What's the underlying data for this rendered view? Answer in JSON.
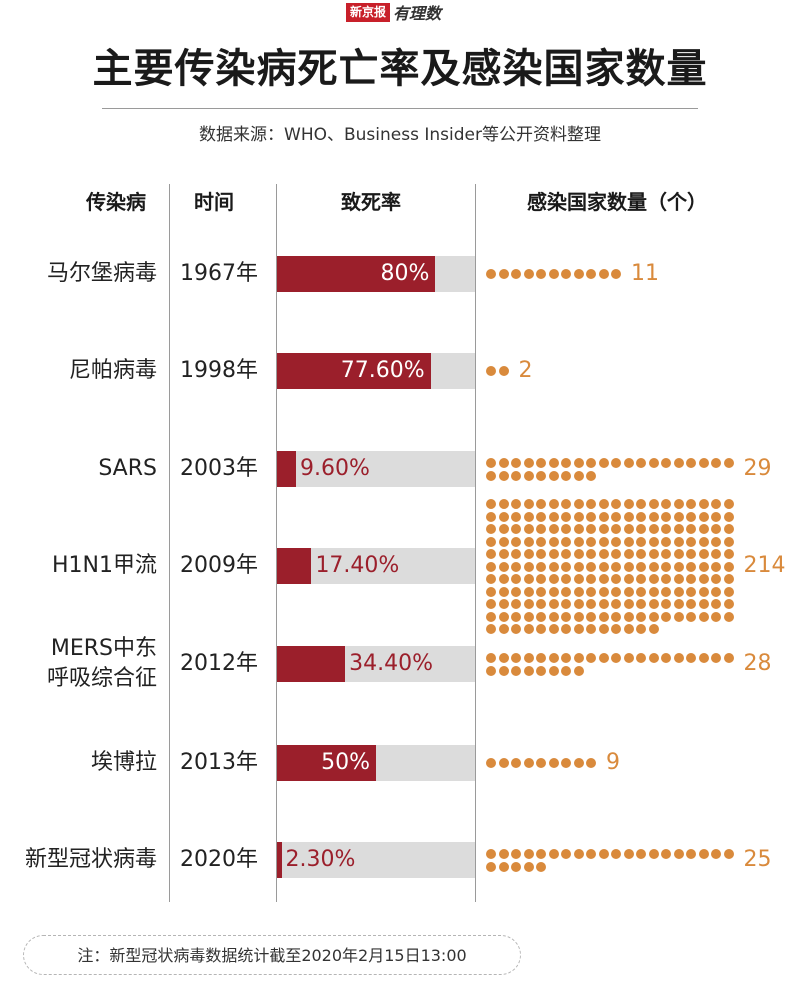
{
  "brand": {
    "box_text": "新京报",
    "script_text": "有理数"
  },
  "title": "主要传染病死亡率及感染国家数量",
  "source": "数据来源：WHO、Business Insider等公开资料整理",
  "headers": {
    "disease": "传染病",
    "time": "时间",
    "fatality": "致死率",
    "countries": "感染国家数量（个）"
  },
  "note": "注：新型冠状病毒数据统计截至2020年2月15日13:00",
  "colors": {
    "bar": "#9b1f2b",
    "track": "#dcdcdc",
    "dot": "#d98a3c"
  },
  "chart_data": {
    "type": "bar",
    "categories": [
      "马尔堡病毒",
      "尼帕病毒",
      "SARS",
      "H1N1甲流",
      "MERS中东呼吸综合征",
      "埃博拉",
      "新型冠状病毒"
    ],
    "rows": [
      {
        "name_lines": [
          "马尔堡病毒"
        ],
        "year": "1967年",
        "fatality": 80,
        "fatality_label": "80%",
        "countries": 11
      },
      {
        "name_lines": [
          "尼帕病毒"
        ],
        "year": "1998年",
        "fatality": 77.6,
        "fatality_label": "77.60%",
        "countries": 2
      },
      {
        "name_lines": [
          "SARS"
        ],
        "year": "2003年",
        "fatality": 9.6,
        "fatality_label": "9.60%",
        "countries": 29
      },
      {
        "name_lines": [
          "H1N1甲流"
        ],
        "year": "2009年",
        "fatality": 17.4,
        "fatality_label": "17.40%",
        "countries": 214
      },
      {
        "name_lines": [
          "MERS中东",
          "呼吸综合征"
        ],
        "year": "2012年",
        "fatality": 34.4,
        "fatality_label": "34.40%",
        "countries": 28
      },
      {
        "name_lines": [
          "埃博拉"
        ],
        "year": "2013年",
        "fatality": 50,
        "fatality_label": "50%",
        "countries": 9
      },
      {
        "name_lines": [
          "新型冠状病毒"
        ],
        "year": "2020年",
        "fatality": 2.3,
        "fatality_label": "2.30%",
        "countries": 25
      }
    ],
    "fatality_range": [
      0,
      100
    ],
    "dots_per_row": 20
  }
}
